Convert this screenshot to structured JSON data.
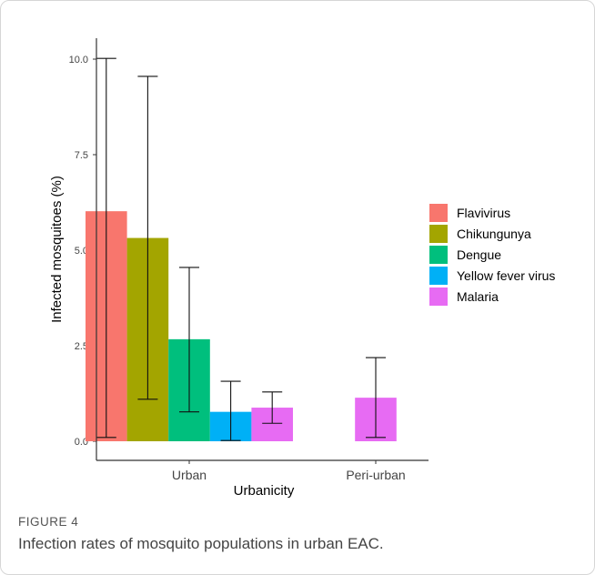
{
  "figure": {
    "label": "FIGURE 4",
    "caption": "Infection rates of mosquito populations in urban EAC."
  },
  "chart_data": {
    "type": "bar",
    "xlabel": "Urbanicity",
    "ylabel": "Infected mosquitoes (%)",
    "categories": [
      "Urban",
      "Peri-urban"
    ],
    "ylim": [
      0,
      10.5
    ],
    "yticks": [
      "0.0",
      "2.5",
      "5.0",
      "7.5",
      "10.0"
    ],
    "grid": false,
    "legend_position": "right",
    "series": [
      {
        "name": "Flavivirus",
        "color": "#F8766D",
        "values": [
          6.02,
          null
        ],
        "err_low": [
          0.1,
          null
        ],
        "err_high": [
          10.02,
          null
        ]
      },
      {
        "name": "Chikungunya",
        "color": "#A3A500",
        "values": [
          5.32,
          null
        ],
        "err_low": [
          1.1,
          null
        ],
        "err_high": [
          9.55,
          null
        ]
      },
      {
        "name": "Dengue",
        "color": "#00BF7D",
        "values": [
          2.67,
          null
        ],
        "err_low": [
          0.77,
          null
        ],
        "err_high": [
          4.55,
          null
        ]
      },
      {
        "name": "Yellow fever virus",
        "color": "#00B0F6",
        "values": [
          0.77,
          null
        ],
        "err_low": [
          0.02,
          null
        ],
        "err_high": [
          1.57,
          null
        ]
      },
      {
        "name": "Malaria",
        "color": "#E76BF3",
        "values": [
          0.88,
          1.14
        ],
        "err_low": [
          0.47,
          0.1
        ],
        "err_high": [
          1.29,
          2.19
        ]
      }
    ]
  }
}
